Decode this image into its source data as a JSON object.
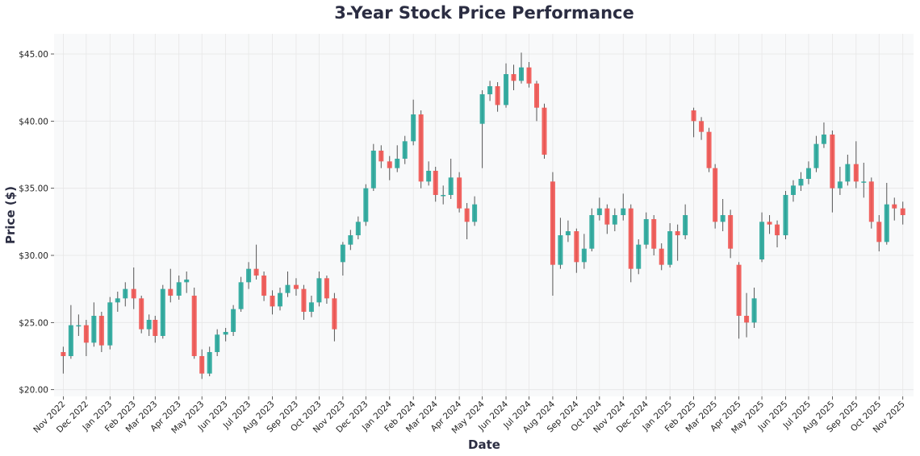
{
  "chart_data": {
    "type": "candlestick",
    "title": "3-Year Stock Price Performance",
    "xlabel": "Date",
    "ylabel": "Price ($)",
    "ylim": [
      19.5,
      46.5
    ],
    "xlim": [
      "2022-10-20",
      "2025-11-15"
    ],
    "grid": true,
    "colors": {
      "up": "#26a69a",
      "down": "#ef5350",
      "background": "#f8f9fa",
      "grid": "#e6e6e6",
      "text": "#2b2d42"
    },
    "yticks": [
      {
        "value": 20,
        "label": "$20.00"
      },
      {
        "value": 25,
        "label": "$25.00"
      },
      {
        "value": 30,
        "label": "$30.00"
      },
      {
        "value": 35,
        "label": "$35.00"
      },
      {
        "value": 40,
        "label": "$40.00"
      },
      {
        "value": 45,
        "label": "$45.00"
      }
    ],
    "xticks": [
      {
        "date": "2022-11-01",
        "label": "Nov 2022"
      },
      {
        "date": "2022-12-01",
        "label": "Dec 2022"
      },
      {
        "date": "2023-01-01",
        "label": "Jan 2023"
      },
      {
        "date": "2023-02-01",
        "label": "Feb 2023"
      },
      {
        "date": "2023-03-01",
        "label": "Mar 2023"
      },
      {
        "date": "2023-04-01",
        "label": "Apr 2023"
      },
      {
        "date": "2023-05-01",
        "label": "May 2023"
      },
      {
        "date": "2023-06-01",
        "label": "Jun 2023"
      },
      {
        "date": "2023-07-01",
        "label": "Jul 2023"
      },
      {
        "date": "2023-08-01",
        "label": "Aug 2023"
      },
      {
        "date": "2023-09-01",
        "label": "Sep 2023"
      },
      {
        "date": "2023-10-01",
        "label": "Oct 2023"
      },
      {
        "date": "2023-11-01",
        "label": "Nov 2023"
      },
      {
        "date": "2023-12-01",
        "label": "Dec 2023"
      },
      {
        "date": "2024-01-01",
        "label": "Jan 2024"
      },
      {
        "date": "2024-02-01",
        "label": "Feb 2024"
      },
      {
        "date": "2024-03-01",
        "label": "Mar 2024"
      },
      {
        "date": "2024-04-01",
        "label": "Apr 2024"
      },
      {
        "date": "2024-05-01",
        "label": "May 2024"
      },
      {
        "date": "2024-06-01",
        "label": "Jun 2024"
      },
      {
        "date": "2024-07-01",
        "label": "Jul 2024"
      },
      {
        "date": "2024-08-01",
        "label": "Aug 2024"
      },
      {
        "date": "2024-09-01",
        "label": "Sep 2024"
      },
      {
        "date": "2024-10-01",
        "label": "Oct 2024"
      },
      {
        "date": "2024-11-01",
        "label": "Nov 2024"
      },
      {
        "date": "2024-12-01",
        "label": "Dec 2024"
      },
      {
        "date": "2025-01-01",
        "label": "Jan 2025"
      },
      {
        "date": "2025-02-01",
        "label": "Feb 2025"
      },
      {
        "date": "2025-03-01",
        "label": "Mar 2025"
      },
      {
        "date": "2025-04-01",
        "label": "Apr 2025"
      },
      {
        "date": "2025-05-01",
        "label": "May 2025"
      },
      {
        "date": "2025-06-01",
        "label": "Jun 2025"
      },
      {
        "date": "2025-07-01",
        "label": "Jul 2025"
      },
      {
        "date": "2025-08-01",
        "label": "Aug 2025"
      },
      {
        "date": "2025-09-01",
        "label": "Sep 2025"
      },
      {
        "date": "2025-10-01",
        "label": "Oct 2025"
      },
      {
        "date": "2025-11-01",
        "label": "Nov 2025"
      }
    ],
    "candles_fields": [
      "date",
      "open",
      "high",
      "low",
      "close"
    ],
    "candles": [
      [
        "2022-11-01",
        22.8,
        23.2,
        21.2,
        22.5
      ],
      [
        "2022-11-11",
        22.5,
        26.3,
        22.3,
        24.8
      ],
      [
        "2022-11-21",
        24.8,
        25.6,
        24.0,
        24.8
      ],
      [
        "2022-12-01",
        24.8,
        25.2,
        22.5,
        23.5
      ],
      [
        "2022-12-11",
        23.5,
        26.5,
        23.2,
        25.5
      ],
      [
        "2022-12-21",
        25.5,
        25.8,
        22.8,
        23.3
      ],
      [
        "2023-01-01",
        23.3,
        26.9,
        23.0,
        26.5
      ],
      [
        "2023-01-11",
        26.5,
        27.3,
        25.8,
        26.8
      ],
      [
        "2023-01-21",
        26.8,
        28.0,
        26.2,
        27.5
      ],
      [
        "2023-02-01",
        27.5,
        29.1,
        26.0,
        26.8
      ],
      [
        "2023-02-11",
        26.8,
        27.0,
        24.2,
        24.5
      ],
      [
        "2023-02-21",
        24.5,
        25.6,
        24.0,
        25.2
      ],
      [
        "2023-03-01",
        25.2,
        25.5,
        23.5,
        24.0
      ],
      [
        "2023-03-11",
        24.0,
        27.8,
        23.8,
        27.5
      ],
      [
        "2023-03-21",
        27.5,
        29.0,
        26.5,
        27.0
      ],
      [
        "2023-04-01",
        27.0,
        28.5,
        26.7,
        28.0
      ],
      [
        "2023-04-11",
        28.0,
        28.8,
        27.2,
        28.2
      ],
      [
        "2023-04-21",
        27.0,
        27.6,
        22.3,
        22.5
      ],
      [
        "2023-05-01",
        22.5,
        23.0,
        20.8,
        21.2
      ],
      [
        "2023-05-11",
        21.2,
        23.2,
        21.0,
        22.8
      ],
      [
        "2023-05-21",
        22.8,
        24.5,
        22.5,
        24.1
      ],
      [
        "2023-06-01",
        24.1,
        24.6,
        23.6,
        24.3
      ],
      [
        "2023-06-11",
        24.3,
        26.3,
        24.0,
        26.0
      ],
      [
        "2023-06-21",
        26.0,
        28.4,
        25.8,
        28.0
      ],
      [
        "2023-07-01",
        28.0,
        29.5,
        27.5,
        29.0
      ],
      [
        "2023-07-11",
        29.0,
        30.8,
        28.2,
        28.5
      ],
      [
        "2023-07-21",
        28.5,
        28.8,
        26.6,
        27.0
      ],
      [
        "2023-08-01",
        27.0,
        27.4,
        25.6,
        26.2
      ],
      [
        "2023-08-11",
        26.2,
        27.6,
        25.9,
        27.2
      ],
      [
        "2023-08-21",
        27.2,
        28.8,
        26.9,
        27.8
      ],
      [
        "2023-09-01",
        27.8,
        28.3,
        27.0,
        27.5
      ],
      [
        "2023-09-11",
        27.5,
        27.8,
        25.2,
        25.8
      ],
      [
        "2023-09-21",
        25.8,
        27.0,
        25.4,
        26.5
      ],
      [
        "2023-10-01",
        26.5,
        28.8,
        26.2,
        28.3
      ],
      [
        "2023-10-11",
        28.3,
        28.5,
        26.4,
        26.8
      ],
      [
        "2023-10-21",
        26.8,
        27.2,
        23.6,
        24.5
      ],
      [
        "2023-11-01",
        29.5,
        31.0,
        28.5,
        30.8
      ],
      [
        "2023-11-11",
        30.8,
        31.9,
        30.4,
        31.5
      ],
      [
        "2023-11-21",
        31.5,
        32.9,
        31.2,
        32.5
      ],
      [
        "2023-12-01",
        32.5,
        35.3,
        32.2,
        35.0
      ],
      [
        "2023-12-11",
        35.0,
        38.3,
        34.8,
        37.8
      ],
      [
        "2023-12-21",
        37.8,
        38.2,
        36.5,
        37.0
      ],
      [
        "2024-01-01",
        37.0,
        37.4,
        35.6,
        36.5
      ],
      [
        "2024-01-11",
        36.5,
        38.2,
        36.2,
        37.2
      ],
      [
        "2024-01-21",
        37.2,
        38.9,
        36.8,
        38.5
      ],
      [
        "2024-02-01",
        38.5,
        41.6,
        38.2,
        40.5
      ],
      [
        "2024-02-11",
        40.5,
        40.8,
        35.0,
        35.5
      ],
      [
        "2024-02-21",
        35.5,
        37.0,
        35.2,
        36.3
      ],
      [
        "2024-03-01",
        36.3,
        36.6,
        34.0,
        34.5
      ],
      [
        "2024-03-11",
        34.5,
        35.2,
        33.8,
        34.5
      ],
      [
        "2024-03-21",
        34.5,
        37.2,
        34.2,
        35.8
      ],
      [
        "2024-04-01",
        35.8,
        36.2,
        33.2,
        33.5
      ],
      [
        "2024-04-11",
        33.5,
        33.9,
        31.2,
        32.5
      ],
      [
        "2024-04-21",
        32.5,
        34.4,
        32.2,
        33.8
      ],
      [
        "2024-05-01",
        39.8,
        42.3,
        36.5,
        42.0
      ],
      [
        "2024-05-11",
        42.0,
        43.0,
        41.5,
        42.6
      ],
      [
        "2024-05-21",
        42.6,
        42.9,
        40.7,
        41.2
      ],
      [
        "2024-06-01",
        41.2,
        44.3,
        41.0,
        43.5
      ],
      [
        "2024-06-11",
        43.5,
        44.2,
        42.3,
        43.0
      ],
      [
        "2024-06-21",
        43.0,
        45.1,
        42.8,
        44.0
      ],
      [
        "2024-07-01",
        44.0,
        44.4,
        42.5,
        42.8
      ],
      [
        "2024-07-11",
        42.8,
        43.0,
        40.0,
        41.0
      ],
      [
        "2024-07-21",
        41.0,
        41.3,
        37.2,
        37.5
      ],
      [
        "2024-08-01",
        35.5,
        36.2,
        27.0,
        29.3
      ],
      [
        "2024-08-11",
        29.3,
        32.8,
        29.0,
        31.5
      ],
      [
        "2024-08-21",
        31.5,
        32.6,
        31.0,
        31.8
      ],
      [
        "2024-09-01",
        31.8,
        32.0,
        28.7,
        29.5
      ],
      [
        "2024-09-11",
        29.5,
        31.6,
        29.0,
        30.5
      ],
      [
        "2024-09-21",
        30.5,
        33.5,
        30.3,
        33.0
      ],
      [
        "2024-10-01",
        33.0,
        34.3,
        32.6,
        33.5
      ],
      [
        "2024-10-11",
        33.5,
        33.8,
        31.6,
        32.3
      ],
      [
        "2024-10-21",
        32.3,
        33.5,
        31.8,
        33.0
      ],
      [
        "2024-11-01",
        33.0,
        34.6,
        32.6,
        33.5
      ],
      [
        "2024-11-11",
        33.5,
        33.8,
        28.0,
        29.0
      ],
      [
        "2024-11-21",
        29.0,
        31.2,
        28.6,
        30.8
      ],
      [
        "2024-12-01",
        30.8,
        33.2,
        30.5,
        32.7
      ],
      [
        "2024-12-11",
        32.7,
        33.0,
        30.0,
        30.5
      ],
      [
        "2024-12-21",
        30.5,
        30.9,
        28.9,
        29.3
      ],
      [
        "2025-01-01",
        29.3,
        32.4,
        29.1,
        31.8
      ],
      [
        "2025-01-11",
        31.8,
        32.3,
        29.6,
        31.5
      ],
      [
        "2025-01-21",
        31.5,
        33.8,
        31.2,
        33.0
      ],
      [
        "2025-02-01",
        40.8,
        41.0,
        38.8,
        40.0
      ],
      [
        "2025-02-11",
        40.0,
        40.3,
        38.6,
        39.2
      ],
      [
        "2025-02-21",
        39.2,
        39.5,
        36.2,
        36.5
      ],
      [
        "2025-03-01",
        36.5,
        36.8,
        32.0,
        32.5
      ],
      [
        "2025-03-11",
        32.5,
        34.2,
        31.8,
        33.0
      ],
      [
        "2025-03-21",
        33.0,
        33.4,
        29.8,
        30.5
      ],
      [
        "2025-04-01",
        29.3,
        29.5,
        23.8,
        25.5
      ],
      [
        "2025-04-11",
        25.5,
        27.2,
        23.9,
        25.0
      ],
      [
        "2025-04-21",
        25.0,
        27.6,
        24.6,
        26.8
      ],
      [
        "2025-05-01",
        29.7,
        33.2,
        29.5,
        32.5
      ],
      [
        "2025-05-11",
        32.5,
        33.0,
        31.6,
        32.3
      ],
      [
        "2025-05-21",
        32.3,
        32.6,
        30.6,
        31.5
      ],
      [
        "2025-06-01",
        31.5,
        34.8,
        31.2,
        34.5
      ],
      [
        "2025-06-11",
        34.5,
        35.6,
        34.0,
        35.2
      ],
      [
        "2025-06-21",
        35.2,
        36.2,
        34.8,
        35.7
      ],
      [
        "2025-07-01",
        35.7,
        37.0,
        35.3,
        36.5
      ],
      [
        "2025-07-11",
        36.5,
        38.9,
        36.2,
        38.3
      ],
      [
        "2025-07-21",
        38.3,
        39.9,
        38.0,
        39.0
      ],
      [
        "2025-08-01",
        39.0,
        39.3,
        33.2,
        35.0
      ],
      [
        "2025-08-11",
        35.0,
        36.6,
        34.5,
        35.5
      ],
      [
        "2025-08-21",
        35.5,
        37.5,
        35.2,
        36.8
      ],
      [
        "2025-09-01",
        36.8,
        38.5,
        35.0,
        35.5
      ],
      [
        "2025-09-11",
        35.5,
        36.9,
        34.3,
        35.5
      ],
      [
        "2025-09-21",
        35.5,
        35.8,
        32.0,
        32.5
      ],
      [
        "2025-10-01",
        32.5,
        33.0,
        30.3,
        31.0
      ],
      [
        "2025-10-11",
        31.0,
        35.4,
        30.8,
        33.8
      ],
      [
        "2025-10-21",
        33.8,
        34.3,
        32.6,
        33.5
      ],
      [
        "2025-11-01",
        33.5,
        34.0,
        32.3,
        33.0
      ]
    ]
  }
}
